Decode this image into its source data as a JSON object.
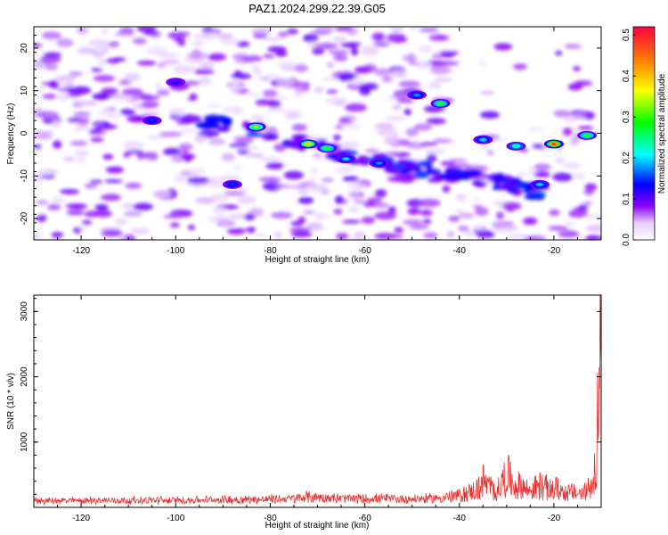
{
  "chart_data": [
    {
      "type": "heatmap",
      "title": "PAZ1.2024.299.22.39.G05",
      "xlabel": "Height of straight line (km)",
      "ylabel": "Frequency (Hz)",
      "xlim": [
        -130,
        -10
      ],
      "ylim": [
        -25,
        25
      ],
      "xticks": [
        -120,
        -100,
        -80,
        -60,
        -40,
        -20
      ],
      "yticks": [
        20,
        10,
        0,
        -10,
        -20
      ],
      "colorbar": {
        "label": "Normalized spectral amplitude",
        "range": [
          0.0,
          0.52
        ],
        "ticks": [
          0.0,
          0.1,
          0.2,
          0.3,
          0.4,
          0.5
        ],
        "colors": [
          "#ffffff",
          "#8a00ff",
          "#0000ff",
          "#00ffff",
          "#00ff00",
          "#ffff00",
          "#ff8000",
          "#ff0040"
        ]
      },
      "ridge": {
        "x": [
          -95,
          -85,
          -75,
          -70,
          -65,
          -60,
          -55,
          -50,
          -45,
          -40,
          -35,
          -30,
          -25,
          -22
        ],
        "y": [
          3.5,
          1.5,
          -1.5,
          -3,
          -5,
          -6,
          -7,
          -8,
          -9,
          -10,
          -11,
          -12,
          -13.5,
          -14
        ]
      },
      "peaks": [
        {
          "x": -83,
          "y": 1.5,
          "amp": 0.35
        },
        {
          "x": -72,
          "y": -2.5,
          "amp": 0.4
        },
        {
          "x": -68,
          "y": -3.5,
          "amp": 0.3
        },
        {
          "x": -64,
          "y": -6,
          "amp": 0.2
        },
        {
          "x": -57,
          "y": -7,
          "amp": 0.18
        },
        {
          "x": -49,
          "y": 9,
          "amp": 0.18
        },
        {
          "x": -44,
          "y": 7,
          "amp": 0.3
        },
        {
          "x": -35,
          "y": -1.5,
          "amp": 0.2
        },
        {
          "x": -28,
          "y": -3,
          "amp": 0.25
        },
        {
          "x": -20,
          "y": -2.5,
          "amp": 0.5
        },
        {
          "x": -23,
          "y": -12,
          "amp": 0.2
        },
        {
          "x": -88,
          "y": -12,
          "amp": 0.15
        },
        {
          "x": -105,
          "y": 3,
          "amp": 0.15
        },
        {
          "x": -100,
          "y": 12,
          "amp": 0.12
        },
        {
          "x": -13,
          "y": -0.5,
          "amp": 0.3
        }
      ]
    },
    {
      "type": "line",
      "xlabel": "Height of straight line (km)",
      "ylabel": "SNR (10 * v/v)",
      "xlim": [
        -130,
        -10
      ],
      "ylim": [
        0,
        3250
      ],
      "xticks": [
        -120,
        -100,
        -80,
        -60,
        -40,
        -20
      ],
      "yticks": [
        1000,
        2000,
        3000
      ],
      "color": "#e8312f",
      "series": [
        {
          "x": [
            -130,
            -125,
            -120,
            -115,
            -110,
            -105,
            -100,
            -95,
            -90,
            -85,
            -80,
            -75,
            -72,
            -70,
            -65,
            -60,
            -55,
            -50,
            -45,
            -42,
            -40,
            -38,
            -36,
            -35,
            -34,
            -33,
            -32,
            -31,
            -30,
            -29,
            -28,
            -27,
            -26,
            -25,
            -24,
            -23,
            -22,
            -21,
            -20,
            -19,
            -18,
            -17,
            -16,
            -15,
            -14,
            -13,
            -12.5,
            -12,
            -11.5,
            -11,
            -10.5,
            -10.2
          ],
          "y": [
            120,
            125,
            130,
            135,
            130,
            135,
            135,
            140,
            150,
            150,
            160,
            170,
            210,
            200,
            175,
            170,
            170,
            160,
            180,
            210,
            240,
            300,
            380,
            560,
            450,
            380,
            350,
            500,
            720,
            550,
            420,
            480,
            380,
            350,
            400,
            460,
            430,
            360,
            400,
            380,
            320,
            310,
            300,
            280,
            300,
            350,
            430,
            520,
            780,
            1200,
            2400,
            3050
          ]
        }
      ]
    }
  ]
}
